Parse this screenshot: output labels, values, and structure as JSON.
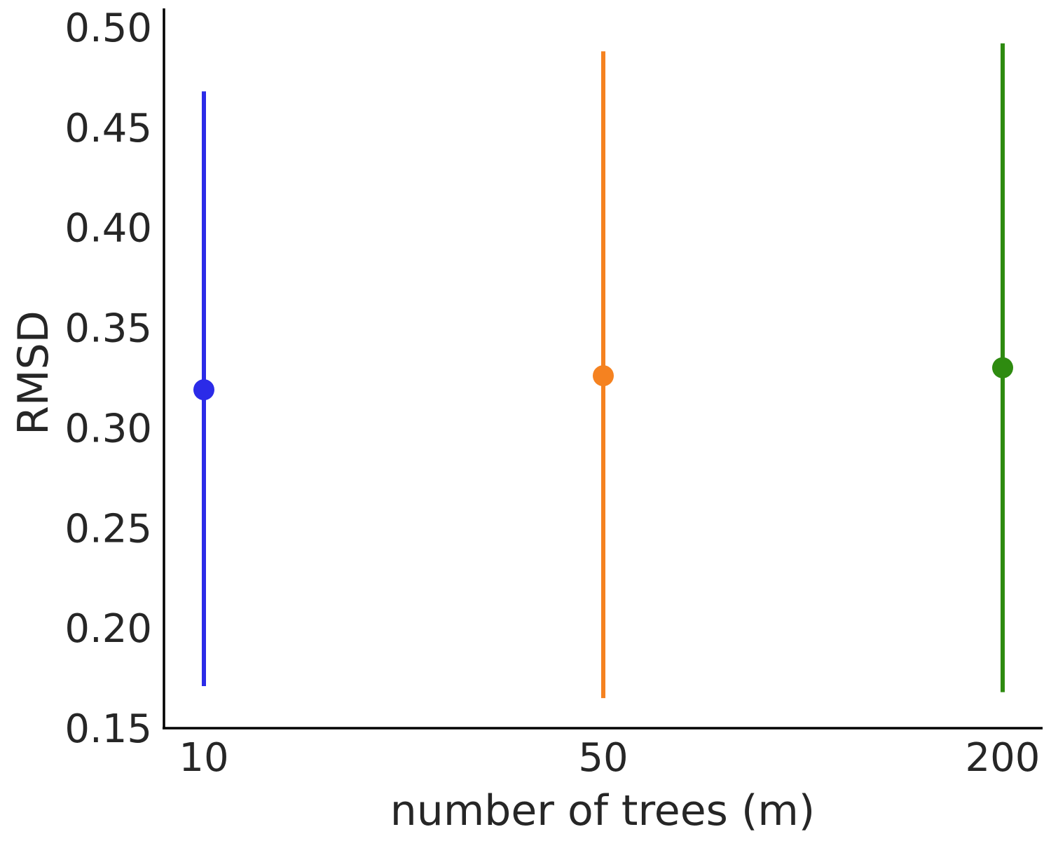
{
  "chart_data": {
    "type": "scatter",
    "title": "",
    "xlabel": "number of trees (m)",
    "ylabel": "RMSD",
    "categories": [
      "10",
      "50",
      "200"
    ],
    "ylim": [
      0.15,
      0.5
    ],
    "yticks": [
      "0.15",
      "0.20",
      "0.25",
      "0.30",
      "0.35",
      "0.40",
      "0.45",
      "0.50"
    ],
    "grid": false,
    "legend": "none",
    "series": [
      {
        "category": "10",
        "value": 0.319,
        "lower": 0.171,
        "upper": 0.468,
        "color": "#2b2be8"
      },
      {
        "category": "50",
        "value": 0.326,
        "lower": 0.165,
        "upper": 0.488,
        "color": "#f58220"
      },
      {
        "category": "200",
        "value": 0.33,
        "lower": 0.168,
        "upper": 0.492,
        "color": "#2e8b10"
      }
    ]
  }
}
